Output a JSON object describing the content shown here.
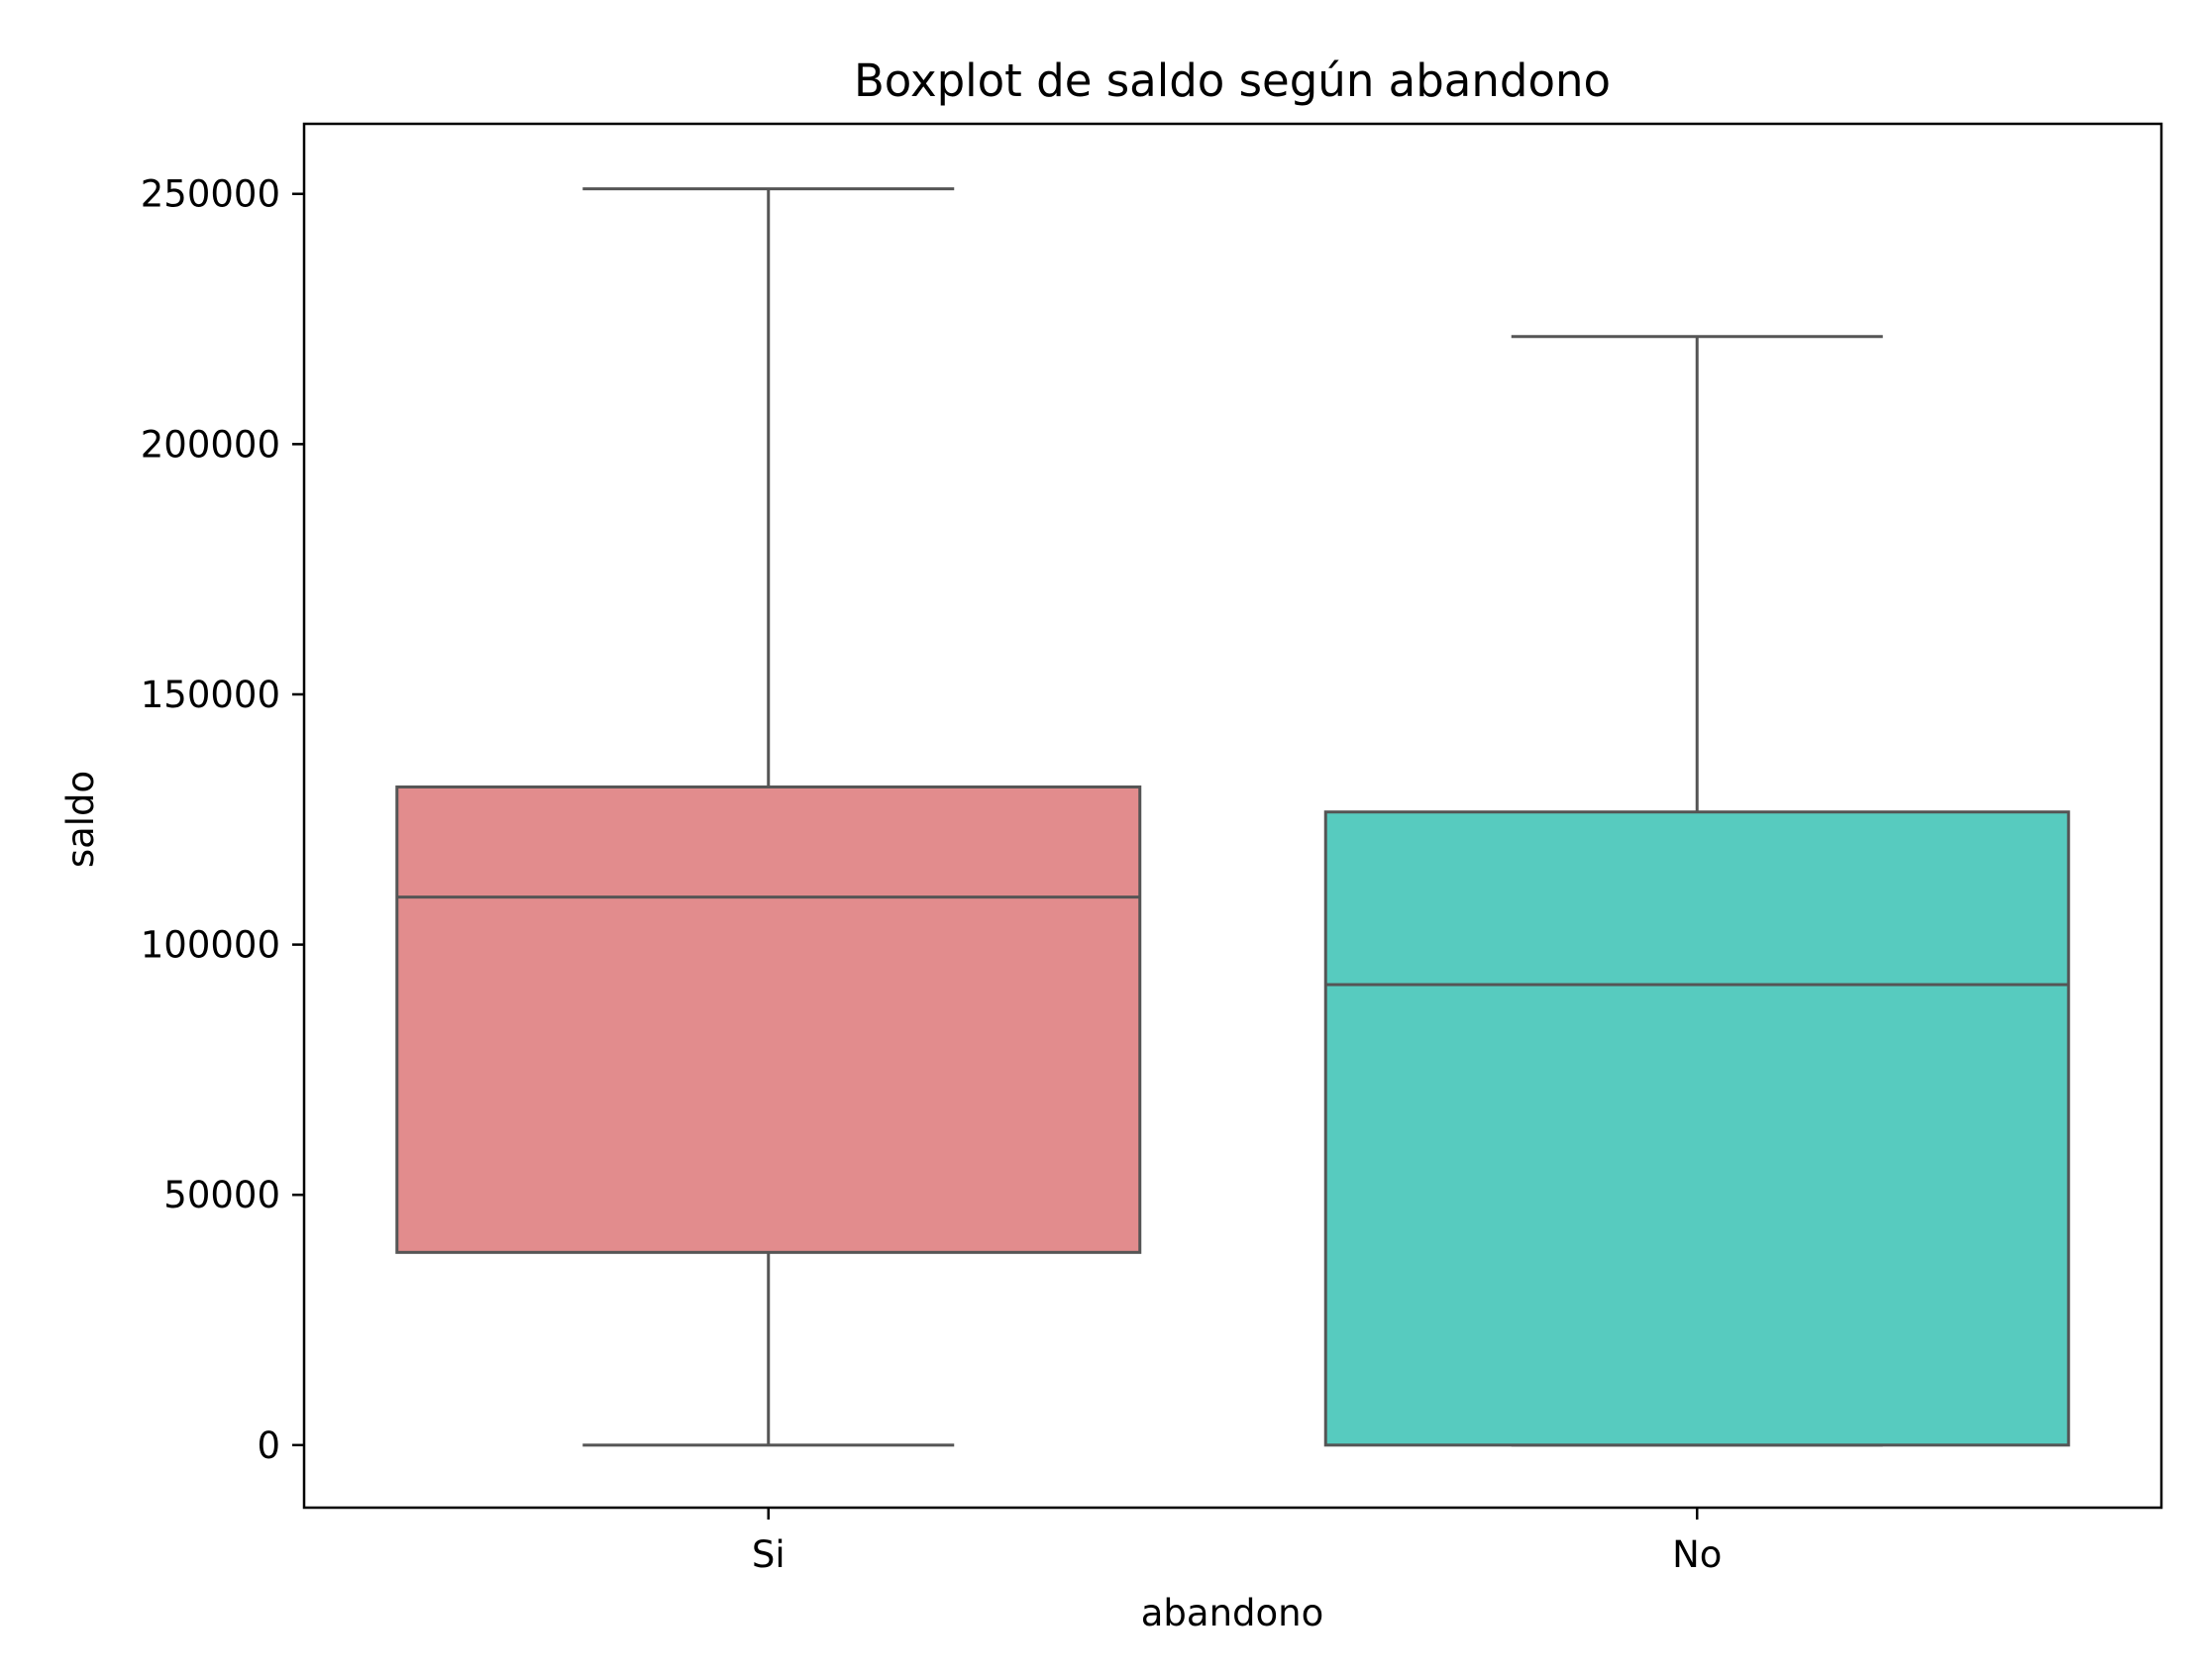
{
  "chart_data": {
    "type": "box",
    "title": "Boxplot de saldo según abandono",
    "xlabel": "abandono",
    "ylabel": "saldo",
    "ylim": [
      -12500,
      264000
    ],
    "yticks": [
      0,
      50000,
      100000,
      150000,
      200000,
      250000
    ],
    "ytick_labels": [
      "0",
      "50000",
      "100000",
      "150000",
      "200000",
      "250000"
    ],
    "categories": [
      "Si",
      "No"
    ],
    "boxes": [
      {
        "category": "Si",
        "whisker_low": 0,
        "q1": 38500,
        "median": 109500,
        "q3": 131500,
        "whisker_high": 251000,
        "color": "#e28c8d"
      },
      {
        "category": "No",
        "whisker_low": 0,
        "q1": 0,
        "median": 92000,
        "q3": 126500,
        "whisker_high": 221500,
        "color": "#57cbbf"
      }
    ],
    "line_color": "#555555",
    "grid": false,
    "legend": false
  }
}
